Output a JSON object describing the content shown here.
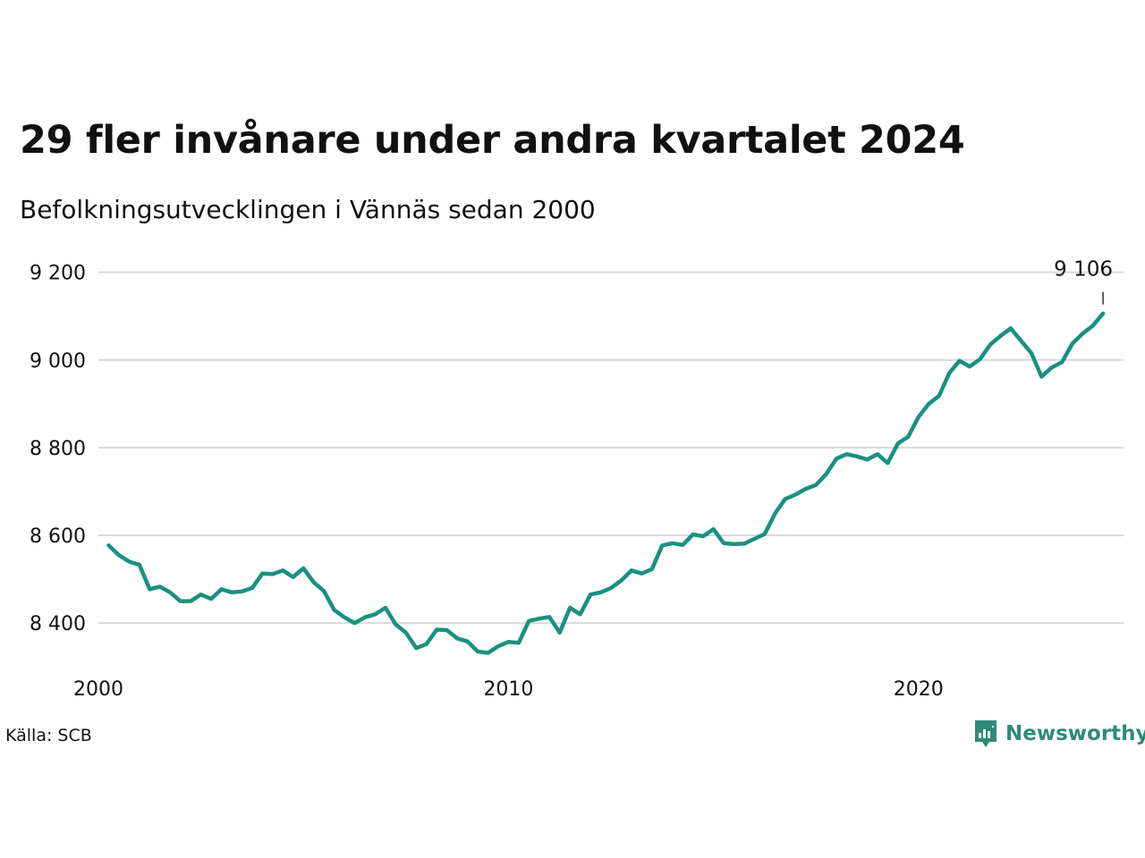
{
  "title": "29 fler invånare under andra kvartalet 2024",
  "subtitle": "Befolkningsutvecklingen i Vännäs sedan 2000",
  "source": "Källa: SCB",
  "brand": "Newsworthy",
  "colors": {
    "line": "#1a9080",
    "grid": "#d9d9d9",
    "brand": "#2e8b78"
  },
  "chart_data": {
    "type": "line",
    "title": "29 fler invånare under andra kvartalet 2024",
    "subtitle": "Befolkningsutvecklingen i Vännäs sedan 2000",
    "x_start": 2000.25,
    "x_step": 0.25,
    "xlim": [
      2000,
      2025
    ],
    "ylim": [
      8280,
      9240
    ],
    "x_ticks": [
      2000,
      2010,
      2020
    ],
    "x_tick_labels": [
      "2000",
      "2010",
      "2020"
    ],
    "y_ticks": [
      8400,
      8600,
      8800,
      9000,
      9200
    ],
    "y_tick_labels": [
      "8 400",
      "8 600",
      "8 800",
      "9 000",
      "9 200"
    ],
    "grid": "horizontal",
    "last_label": "9 106",
    "values": [
      8577,
      8555,
      8540,
      8533,
      8477,
      8483,
      8470,
      8450,
      8450,
      8465,
      8455,
      8477,
      8470,
      8472,
      8480,
      8513,
      8512,
      8520,
      8505,
      8525,
      8493,
      8473,
      8430,
      8413,
      8400,
      8413,
      8420,
      8435,
      8397,
      8378,
      8343,
      8352,
      8385,
      8384,
      8365,
      8358,
      8335,
      8332,
      8347,
      8357,
      8355,
      8405,
      8410,
      8414,
      8378,
      8435,
      8420,
      8465,
      8470,
      8480,
      8497,
      8520,
      8513,
      8523,
      8577,
      8582,
      8578,
      8602,
      8598,
      8614,
      8582,
      8580,
      8581,
      8592,
      8603,
      8650,
      8683,
      8693,
      8706,
      8715,
      8740,
      8775,
      8785,
      8780,
      8773,
      8785,
      8765,
      8810,
      8825,
      8870,
      8900,
      8918,
      8970,
      8998,
      8985,
      9002,
      9035,
      9055,
      9072,
      9044,
      9016,
      8962,
      8983,
      8995,
      9037,
      9060,
      9078,
      9106
    ]
  }
}
